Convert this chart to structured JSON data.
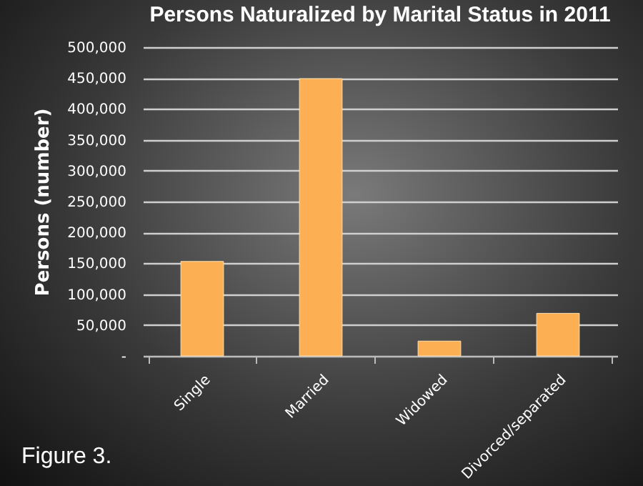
{
  "chart_data": {
    "type": "bar",
    "title": "Persons Naturalized by Marital Status in 2011",
    "ylabel": "Persons (number)",
    "categories": [
      "Single",
      "Married",
      "Widowed",
      "Divorced/separated"
    ],
    "values": [
      153000,
      449000,
      24000,
      69000
    ],
    "color": "#fdb053",
    "ylim": [
      0,
      500000
    ],
    "yticks": [
      {
        "value": 0,
        "label": "-"
      },
      {
        "value": 50000,
        "label": "50,000"
      },
      {
        "value": 100000,
        "label": "100,000"
      },
      {
        "value": 150000,
        "label": "150,000"
      },
      {
        "value": 200000,
        "label": "200,000"
      },
      {
        "value": 250000,
        "label": "250,000"
      },
      {
        "value": 300000,
        "label": "300,000"
      },
      {
        "value": 350000,
        "label": "350,000"
      },
      {
        "value": 400000,
        "label": "400,000"
      },
      {
        "value": 450000,
        "label": "450,000"
      },
      {
        "value": 500000,
        "label": "500,000"
      }
    ],
    "grid": "y",
    "annotations": [
      "Figure 3."
    ]
  }
}
